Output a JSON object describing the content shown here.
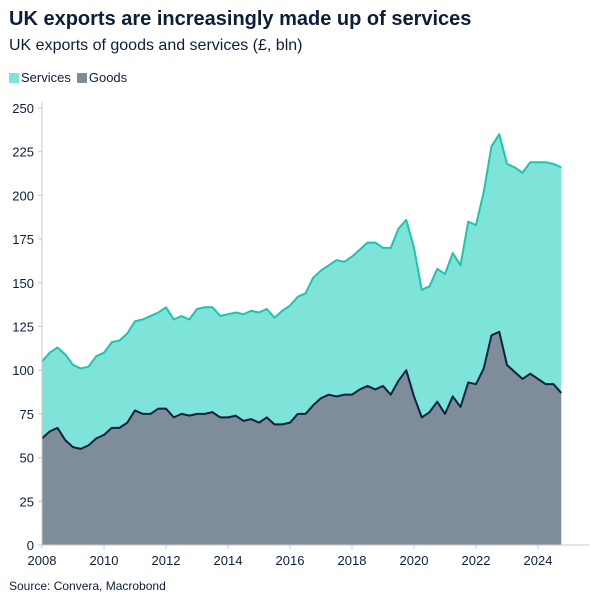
{
  "chart_data": {
    "type": "area",
    "stacked": true,
    "title": "UK exports are increasingly made up of services",
    "subtitle": "UK exports of goods and services (£, bln)",
    "source": "Source: Convera, Macrobond",
    "legend_position": "top-left",
    "grid": false,
    "xlim": [
      2008,
      2025
    ],
    "ylim": [
      0,
      250
    ],
    "x_ticks": [
      "2008",
      "2010",
      "2012",
      "2014",
      "2016",
      "2018",
      "2020",
      "2022",
      "2024"
    ],
    "y_ticks": [
      "0",
      "25",
      "50",
      "75",
      "100",
      "125",
      "150",
      "175",
      "200",
      "225",
      "250"
    ],
    "x_start": 2008,
    "x_step": 0.25,
    "series": [
      {
        "name": "Goods",
        "fill": "#7f8c99",
        "line": "#0d2240",
        "values": [
          61,
          65,
          67,
          60,
          56,
          55,
          57,
          61,
          63,
          67,
          67,
          70,
          77,
          75,
          75,
          78,
          78,
          73,
          75,
          74,
          75,
          75,
          76,
          73,
          73,
          74,
          71,
          72,
          70,
          73,
          69,
          69,
          70,
          75,
          75,
          80,
          84,
          86,
          85,
          86,
          86,
          89,
          91,
          89,
          91,
          86,
          94,
          100,
          85,
          73,
          76,
          82,
          75,
          85,
          79,
          93,
          92,
          101,
          120,
          122,
          103,
          99,
          95,
          98,
          95,
          92,
          92,
          87
        ]
      },
      {
        "name": "Services",
        "fill": "#7ee3d8",
        "line": "#1dc4ae",
        "values": [
          44,
          45,
          46,
          49,
          47,
          46,
          45,
          47,
          47,
          49,
          50,
          51,
          51,
          54,
          56,
          55,
          58,
          56,
          56,
          55,
          60,
          61,
          60,
          58,
          59,
          59,
          61,
          62,
          63,
          62,
          61,
          65,
          67,
          67,
          69,
          73,
          73,
          74,
          78,
          76,
          79,
          80,
          82,
          84,
          79,
          84,
          87,
          86,
          85,
          73,
          72,
          76,
          80,
          82,
          81,
          92,
          91,
          101,
          108,
          113,
          115,
          117,
          118,
          121,
          124,
          127,
          126,
          129
        ]
      }
    ]
  }
}
